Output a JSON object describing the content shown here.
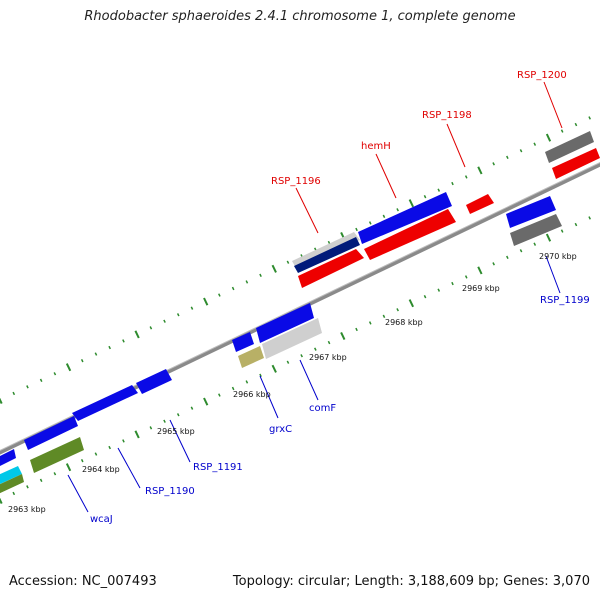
{
  "title": "Rhodobacter sphaeroides 2.4.1 chromosome 1, complete genome",
  "footer": {
    "accession": "Accession: NC_007493",
    "summary": "Topology: circular; Length: 3,188,609 bp; Genes: 3,070"
  },
  "colors": {
    "backbone": "#8a8a8a",
    "tick": "#2e8b2e",
    "label_top": "#e00000",
    "label_bottom": "#0000cc",
    "blue": "#0a0ae6",
    "red": "#ee0000",
    "navy": "#001a7a",
    "gray": "#6a6a6a",
    "light_gray": "#cfcfcf",
    "khaki": "#b8b066",
    "olive": "#5f8a26",
    "cyan": "#00c8e8"
  },
  "kbp_labels": [
    "2963 kbp",
    "2964 kbp",
    "2965 kbp",
    "2966 kbp",
    "2967 kbp",
    "2968 kbp",
    "2969 kbp",
    "2970 kbp"
  ],
  "top_labels": [
    "RSP_1200",
    "RSP_1198",
    "hemH",
    "RSP_1196"
  ],
  "bottom_labels": [
    "wcaJ",
    "RSP_1190",
    "RSP_1191",
    "grxC",
    "comF",
    "RSP_1199"
  ]
}
